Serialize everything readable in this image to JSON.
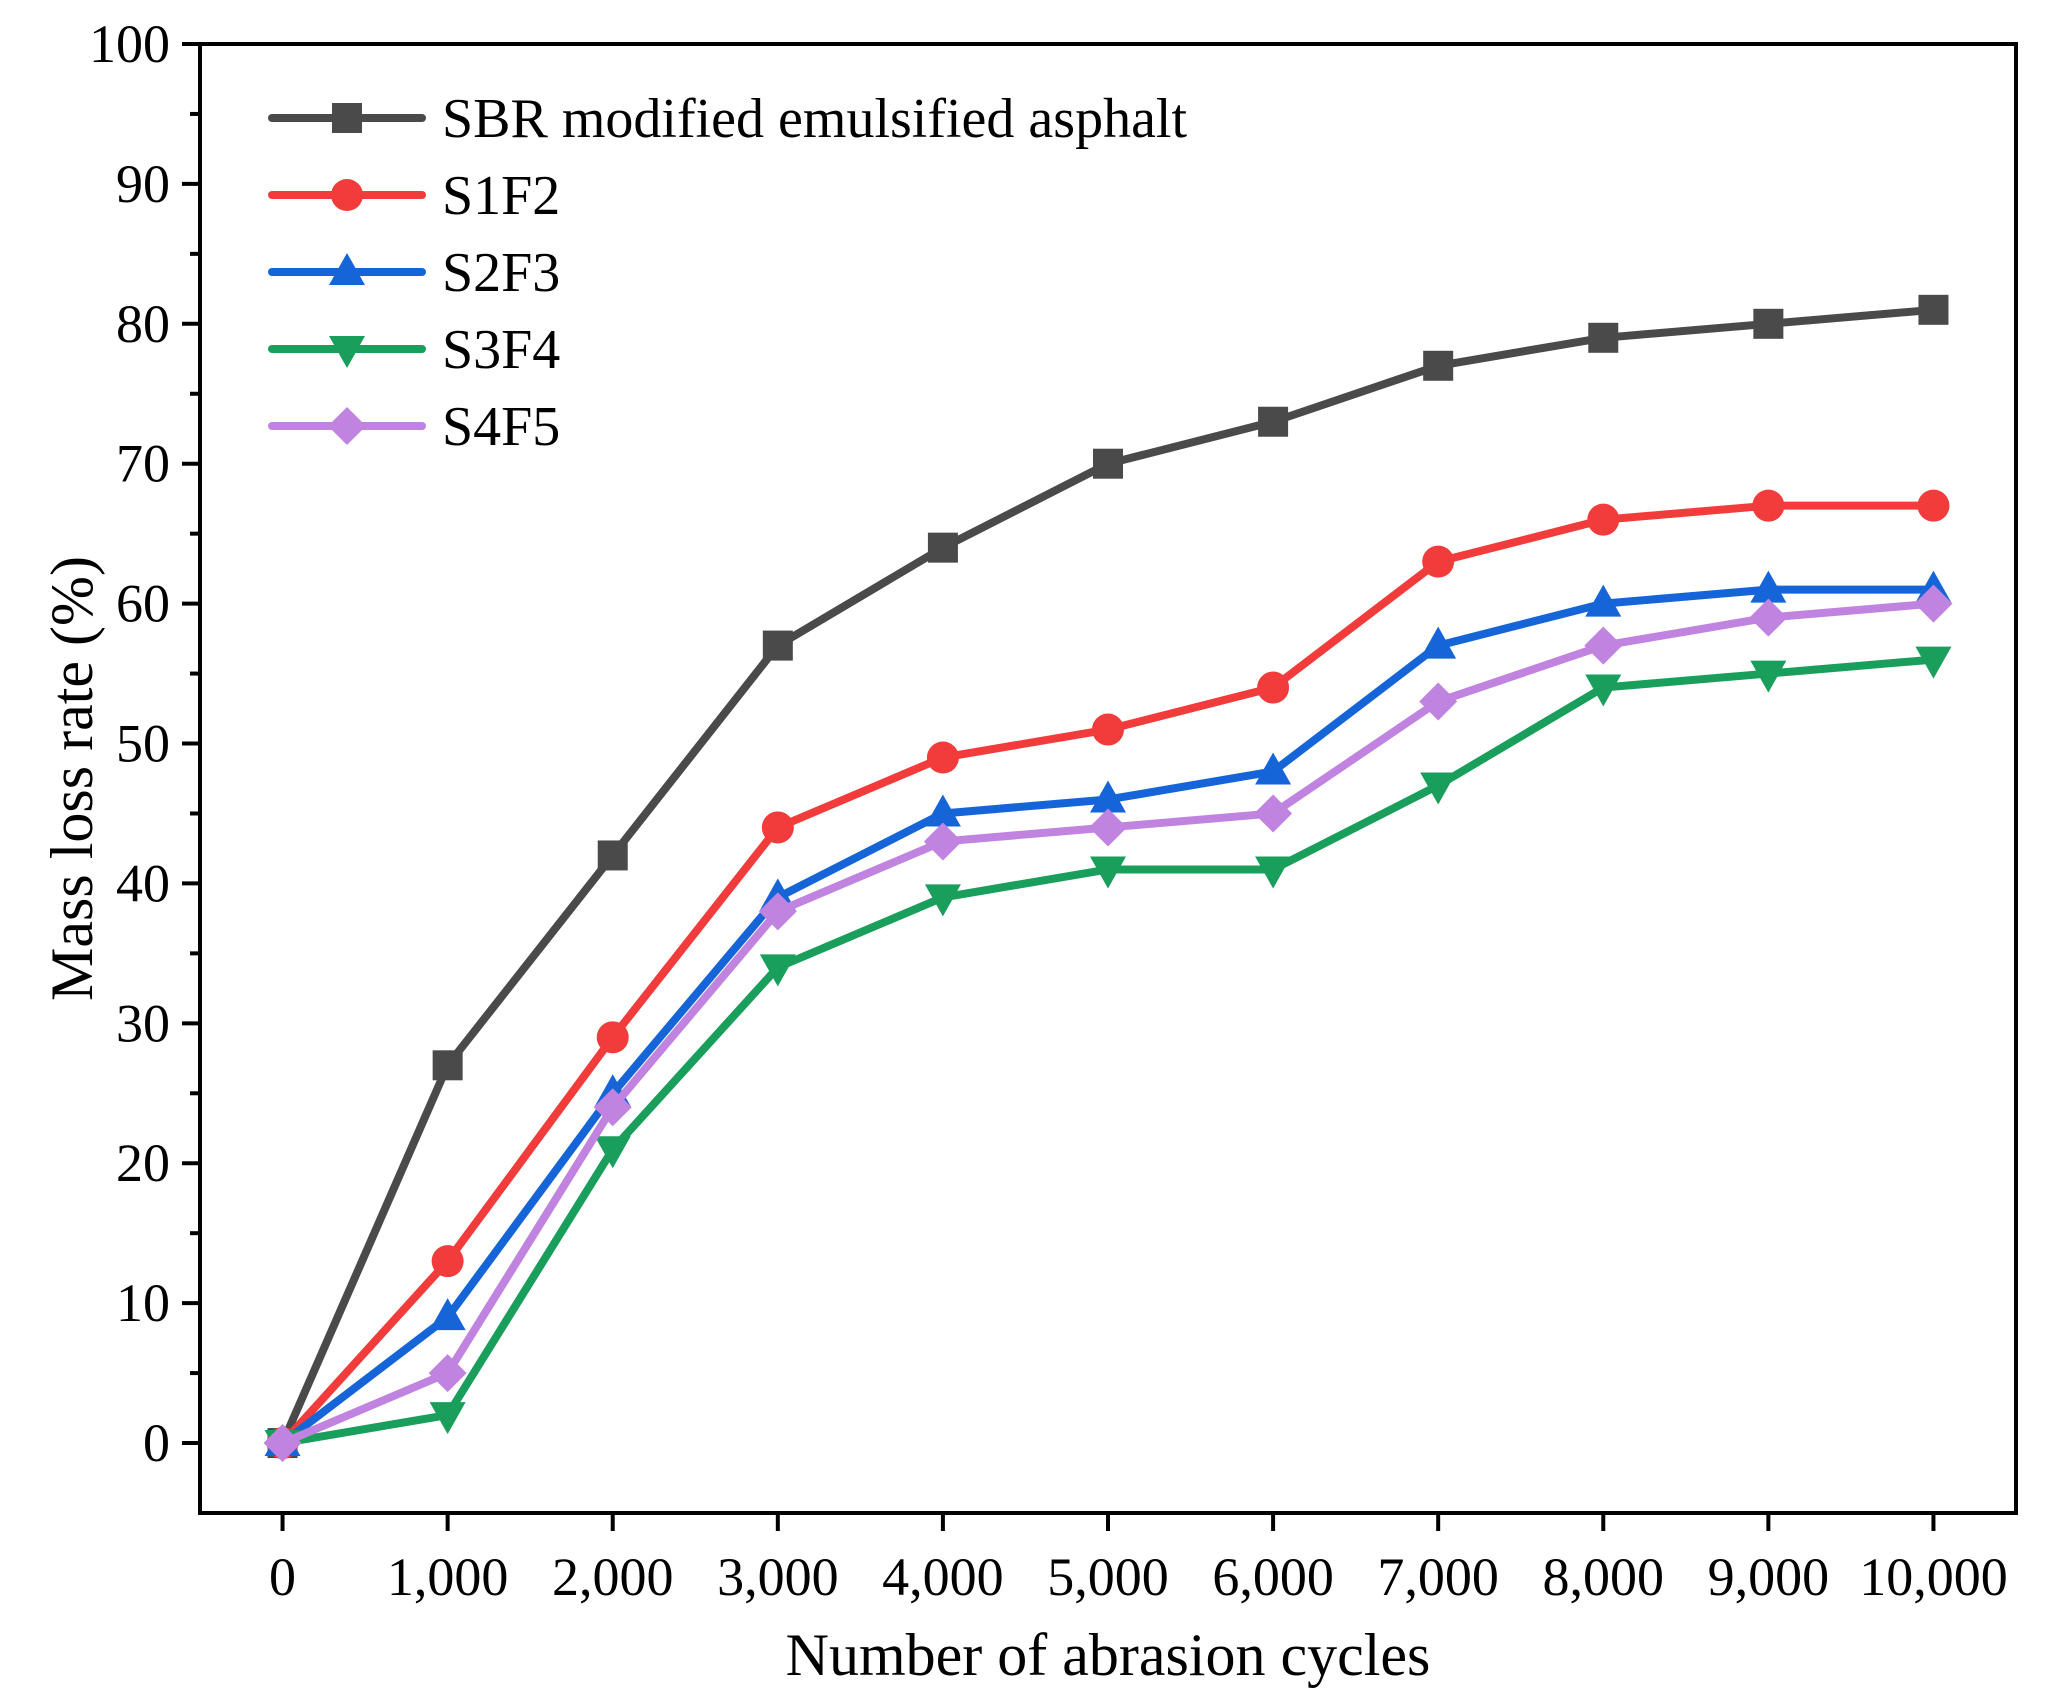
{
  "chart_data": {
    "type": "line",
    "title": "",
    "xlabel": "Number of abrasion cycles",
    "ylabel": "Mass loss rate (%)",
    "x": [
      0,
      1000,
      2000,
      3000,
      4000,
      5000,
      6000,
      7000,
      8000,
      9000,
      10000
    ],
    "x_tick_labels": [
      "0",
      "1,000",
      "2,000",
      "3,000",
      "4,000",
      "5,000",
      "6,000",
      "7,000",
      "8,000",
      "9,000",
      "10,000"
    ],
    "y_ticks": [
      0,
      10,
      20,
      30,
      40,
      50,
      60,
      70,
      80,
      90,
      100
    ],
    "y_tick_labels": [
      "0",
      "10",
      "20",
      "30",
      "40",
      "50",
      "60",
      "70",
      "80",
      "90",
      "100"
    ],
    "xlim": [
      -500,
      10500
    ],
    "ylim": [
      -5,
      100
    ],
    "grid": false,
    "legend_position": "top-left",
    "series": [
      {
        "name": "SBR modified emulsified asphalt",
        "color": "#4a4a4a",
        "marker": "square",
        "values": [
          0,
          27,
          42,
          57,
          64,
          70,
          73,
          77,
          79,
          80,
          81
        ]
      },
      {
        "name": "S1F2",
        "color": "#f23b3b",
        "marker": "circle",
        "values": [
          0,
          13,
          29,
          44,
          49,
          51,
          54,
          63,
          66,
          67,
          67
        ]
      },
      {
        "name": "S2F3",
        "color": "#1565d8",
        "marker": "triangle-up",
        "values": [
          0,
          9,
          25,
          39,
          45,
          46,
          48,
          57,
          60,
          61,
          61
        ]
      },
      {
        "name": "S3F4",
        "color": "#1a9e5c",
        "marker": "triangle-down",
        "values": [
          0,
          2,
          21,
          34,
          39,
          41,
          41,
          47,
          54,
          55,
          56
        ]
      },
      {
        "name": "S4F5",
        "color": "#c084e0",
        "marker": "diamond",
        "values": [
          0,
          5,
          24,
          38,
          43,
          44,
          45,
          53,
          57,
          59,
          60
        ]
      }
    ]
  }
}
